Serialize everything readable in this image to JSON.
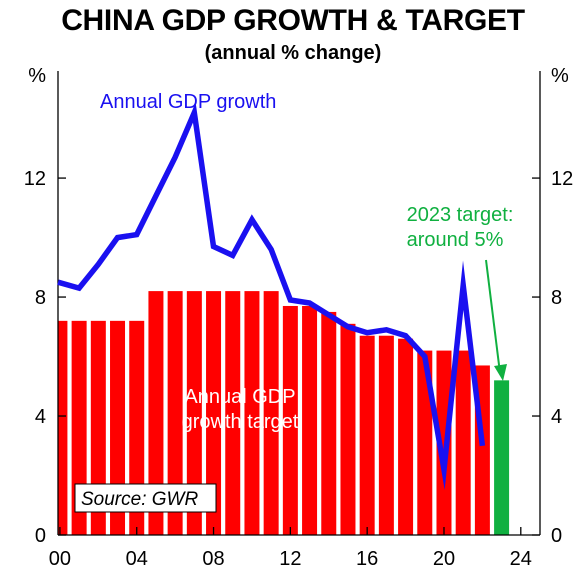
{
  "title": "CHINA GDP GROWTH & TARGET",
  "subtitle": "(annual % change)",
  "colors": {
    "line": "#1a10f0",
    "bars": "#ff0000",
    "target_2023": "#10b040",
    "source_box_border": "#000000"
  },
  "chart_data": {
    "type": "bar",
    "y_unit_left": "%",
    "y_unit_right": "%",
    "ylim": [
      0,
      15.6
    ],
    "yticks": [
      0,
      4,
      8,
      12
    ],
    "xlim": [
      1999.9,
      2025.0
    ],
    "xtick_values": [
      2000,
      2004,
      2008,
      2012,
      2016,
      2020,
      2024
    ],
    "xtick_labels": [
      "00",
      "04",
      "08",
      "12",
      "16",
      "20",
      "24"
    ],
    "grid": false,
    "series": [
      {
        "name": "Annual GDP growth target",
        "type": "bar",
        "x": [
          2000,
          2001,
          2002,
          2003,
          2004,
          2005,
          2006,
          2007,
          2008,
          2009,
          2010,
          2011,
          2012,
          2013,
          2014,
          2015,
          2016,
          2017,
          2018,
          2019,
          2020,
          2021,
          2022
        ],
        "values": [
          7.2,
          7.2,
          7.2,
          7.2,
          7.2,
          8.2,
          8.2,
          8.2,
          8.2,
          8.2,
          8.2,
          8.2,
          7.7,
          7.7,
          7.5,
          7.1,
          6.7,
          6.7,
          6.6,
          6.2,
          6.2,
          6.2,
          5.7
        ]
      },
      {
        "name": "2023 target",
        "type": "bar",
        "x": [
          2023
        ],
        "values": [
          5.2
        ]
      },
      {
        "name": "Annual GDP growth",
        "type": "line",
        "x": [
          1999.9,
          2001,
          2002,
          2003,
          2004,
          2005,
          2006,
          2007,
          2008,
          2009,
          2010,
          2011,
          2012,
          2013,
          2014,
          2015,
          2016,
          2017,
          2018,
          2019,
          2020,
          2021,
          2022
        ],
        "values": [
          8.5,
          8.3,
          9.1,
          10.0,
          10.1,
          11.4,
          12.7,
          14.2,
          9.7,
          9.4,
          10.6,
          9.6,
          7.9,
          7.8,
          7.4,
          7.0,
          6.8,
          6.9,
          6.7,
          6.0,
          2.2,
          8.4,
          3.0
        ]
      }
    ],
    "annotations": {
      "line_label": "Annual GDP growth",
      "bar_label_line1": "Annual GDP",
      "bar_label_line2": "growth target",
      "target_label_line1": "2023 target:",
      "target_label_line2": "around 5%",
      "source": "Source: GWR"
    }
  }
}
